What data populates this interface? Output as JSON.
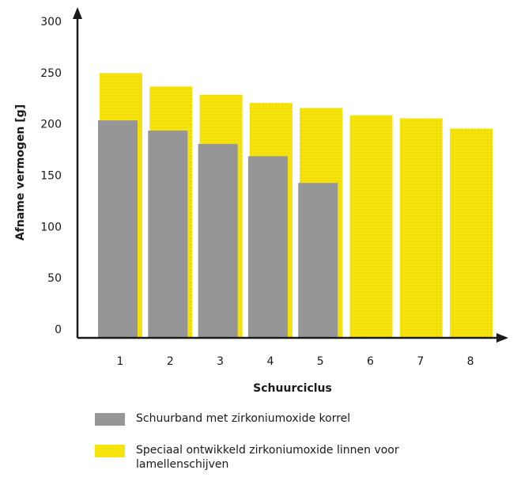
{
  "chart_data": {
    "type": "bar",
    "categories": [
      "1",
      "2",
      "3",
      "4",
      "5",
      "6",
      "7",
      "8"
    ],
    "series": [
      {
        "name": "Speciaal ontwikkeld zirkoniumoxide linnen voor lamellenschijven",
        "values": [
          258,
          245,
          237,
          229,
          224,
          217,
          214,
          204
        ]
      },
      {
        "name": "Schuurband met zirkoniumoxide korrel",
        "values": [
          212,
          202,
          189,
          177,
          151,
          null,
          null,
          null
        ]
      }
    ],
    "xlabel": "Schuurciclus",
    "ylabel": "Afname vermogen [g]",
    "ylim": [
      0,
      300
    ],
    "yticks": [
      0,
      50,
      100,
      150,
      200,
      250,
      300
    ],
    "overlay": true,
    "grid": false,
    "legend_position": "bottom"
  },
  "colors": {
    "yellow": "#f6e30c",
    "gray": "#969696",
    "axis": "#1a1a1a"
  },
  "legend": {
    "items": [
      {
        "label": "Schuurband met zirkoniumoxide korrel",
        "color": "#969696"
      },
      {
        "label": "Speciaal ontwikkeld zirkoniumoxide linnen voor lamellenschijven",
        "color": "#f6e30c"
      }
    ]
  }
}
